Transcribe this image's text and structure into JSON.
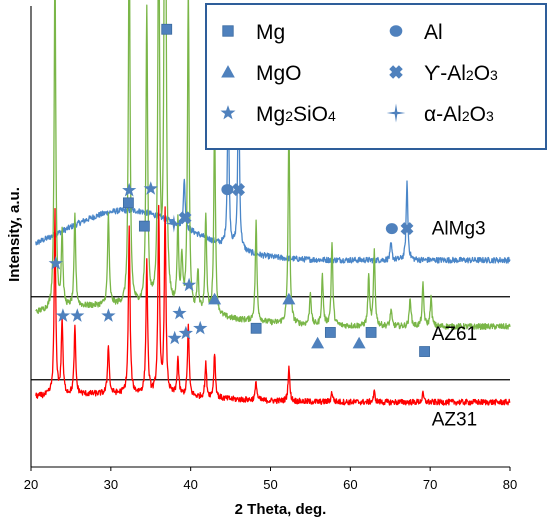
{
  "chart_data": {
    "type": "line",
    "title": "",
    "xlabel": "2 Theta, deg.",
    "ylabel": "Intensity, a.u.",
    "xlim": [
      20,
      80
    ],
    "xticks": [
      20,
      30,
      40,
      50,
      60,
      70,
      80
    ],
    "grid": false,
    "legend_position": "top-right",
    "colors": {
      "AlMg3": "#4a86c8",
      "AZ61": "#7ab648",
      "AZ31": "#ff0000",
      "marker": "#4f81bd",
      "separator": "#000000",
      "legend_border": "#2e5e9a"
    },
    "legend": [
      {
        "shape": "square",
        "text": "Mg"
      },
      {
        "shape": "circle",
        "text": "Al"
      },
      {
        "shape": "triangle",
        "text": "MgO"
      },
      {
        "shape": "x-cross",
        "text": "ϒ-Al",
        "sub": "2",
        "text2": "O",
        "sub2": "3"
      },
      {
        "shape": "star",
        "text": "Mg",
        "sub": "2",
        "text2": "SiO",
        "sub2": "4"
      },
      {
        "shape": "plus-star",
        "text": "α-Al",
        "sub": "2",
        "text2": "O",
        "sub2": "3"
      }
    ],
    "series": [
      {
        "name": "AlMg3",
        "baseline": 0.94,
        "peaks": [
          [
            44.7,
            1.95
          ],
          [
            46.0,
            2.2
          ],
          [
            65.1,
            0.2
          ],
          [
            67.1,
            0.95
          ],
          [
            39.2,
            0.6
          ]
        ],
        "hump": {
          "center": 32,
          "height": 0.6,
          "width": 11
        }
      },
      {
        "name": "AZ61",
        "baseline": 0.14,
        "peaks": [
          [
            23.0,
            4.3
          ],
          [
            23.9,
            0.9
          ],
          [
            25.5,
            1.1
          ],
          [
            29.7,
            1.1
          ],
          [
            32.3,
            4.7
          ],
          [
            34.5,
            3.6
          ],
          [
            36.0,
            5.1
          ],
          [
            36.8,
            8.5
          ],
          [
            38.4,
            1.0
          ],
          [
            38.9,
            0.6
          ],
          [
            39.7,
            3.9
          ],
          [
            40.9,
            0.5
          ],
          [
            41.9,
            1.2
          ],
          [
            43.0,
            2.4
          ],
          [
            48.2,
            1.2
          ],
          [
            52.3,
            2.4
          ],
          [
            55.0,
            0.4
          ],
          [
            56.5,
            0.6
          ],
          [
            57.7,
            1.0
          ],
          [
            62.3,
            0.6
          ],
          [
            63.0,
            0.9
          ],
          [
            65.1,
            0.2
          ],
          [
            67.5,
            0.35
          ],
          [
            69.1,
            0.5
          ],
          [
            70.1,
            0.35
          ]
        ],
        "hump": {
          "center": 30,
          "height": 0.25,
          "width": 15
        }
      },
      {
        "name": "AZ31",
        "baseline": -0.77,
        "peaks": [
          [
            23.0,
            2.2
          ],
          [
            23.9,
            0.9
          ],
          [
            25.5,
            0.8
          ],
          [
            29.7,
            0.6
          ],
          [
            32.3,
            2.0
          ],
          [
            34.5,
            1.6
          ],
          [
            36.0,
            2.2
          ],
          [
            36.8,
            2.2
          ],
          [
            38.4,
            0.45
          ],
          [
            39.7,
            0.85
          ],
          [
            41.9,
            0.4
          ],
          [
            43.0,
            0.55
          ],
          [
            48.2,
            0.22
          ],
          [
            52.3,
            0.42
          ],
          [
            57.7,
            0.12
          ],
          [
            63.0,
            0.12
          ],
          [
            69.1,
            0.1
          ]
        ],
        "hump": {
          "center": 30,
          "height": 0.1,
          "width": 15
        }
      }
    ],
    "phase_markers": [
      {
        "shape": "square",
        "x": 37.0,
        "y": 3.72,
        "trace": "AZ61"
      },
      {
        "shape": "star",
        "x": 32.3,
        "y": 1.78,
        "trace": "AZ61"
      },
      {
        "shape": "star",
        "x": 35.0,
        "y": 1.8,
        "trace": "AZ61"
      },
      {
        "shape": "square",
        "x": 32.2,
        "y": 1.63,
        "trace": "AZ61"
      },
      {
        "shape": "circle",
        "x": 44.6,
        "y": 1.79,
        "trace": "AlMg3"
      },
      {
        "shape": "x-cross",
        "x": 46.0,
        "y": 1.79,
        "trace": "AlMg3"
      },
      {
        "shape": "square",
        "x": 34.2,
        "y": 1.35,
        "trace": "AZ61"
      },
      {
        "shape": "plus-star",
        "x": 37.9,
        "y": 1.38,
        "trace": "AZ61"
      },
      {
        "shape": "x-cross",
        "x": 39.3,
        "y": 1.45,
        "trace": "AlMg3"
      },
      {
        "shape": "circle",
        "x": 65.2,
        "y": 1.32,
        "trace": "AlMg3"
      },
      {
        "shape": "x-cross",
        "x": 67.1,
        "y": 1.32,
        "trace": "AlMg3"
      },
      {
        "shape": "star",
        "x": 23.1,
        "y": 0.9,
        "trace": "AZ61"
      },
      {
        "shape": "star",
        "x": 39.8,
        "y": 0.64,
        "trace": "AZ61"
      },
      {
        "shape": "triangle",
        "x": 43.0,
        "y": 0.47,
        "trace": "AZ61"
      },
      {
        "shape": "triangle",
        "x": 52.3,
        "y": 0.47,
        "trace": "AZ61"
      },
      {
        "shape": "star",
        "x": 24.0,
        "y": 0.27,
        "trace": "AZ61"
      },
      {
        "shape": "star",
        "x": 25.8,
        "y": 0.27,
        "trace": "AZ61"
      },
      {
        "shape": "star",
        "x": 29.7,
        "y": 0.27,
        "trace": "AZ61"
      },
      {
        "shape": "star",
        "x": 38.6,
        "y": 0.3,
        "trace": "AZ61"
      },
      {
        "shape": "star",
        "x": 39.4,
        "y": 0.06,
        "trace": "AZ61"
      },
      {
        "shape": "star",
        "x": 41.2,
        "y": 0.12,
        "trace": "AZ61"
      },
      {
        "shape": "star",
        "x": 38.0,
        "y": 0.0,
        "trace": "AZ61"
      },
      {
        "shape": "square",
        "x": 48.2,
        "y": 0.12,
        "trace": "AZ61"
      },
      {
        "shape": "square",
        "x": 57.5,
        "y": 0.07,
        "trace": "AZ61"
      },
      {
        "shape": "square",
        "x": 62.6,
        "y": 0.07,
        "trace": "AZ61"
      },
      {
        "shape": "triangle",
        "x": 55.9,
        "y": -0.06,
        "trace": "AZ61"
      },
      {
        "shape": "triangle",
        "x": 61.1,
        "y": -0.06,
        "trace": "AZ61"
      },
      {
        "shape": "square",
        "x": 69.3,
        "y": -0.16,
        "trace": "AZ61"
      }
    ],
    "separators": [
      0.5,
      -0.5
    ]
  }
}
